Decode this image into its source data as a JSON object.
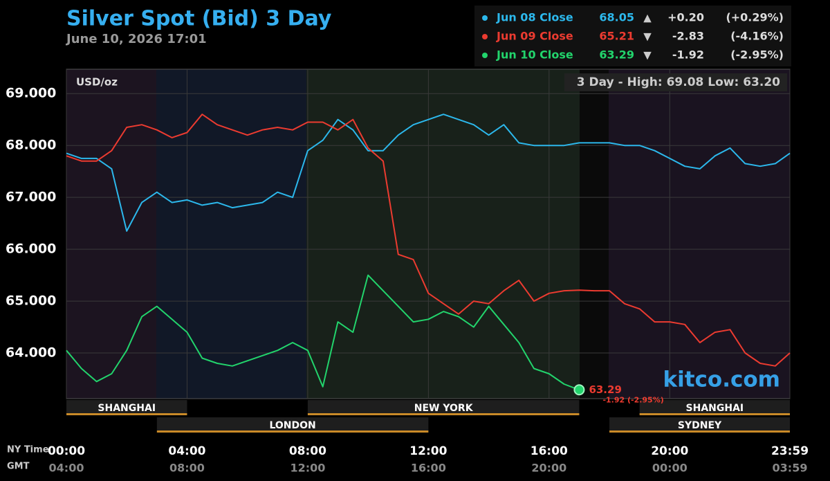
{
  "chart_data": {
    "type": "line",
    "title": "Silver Spot (Bid) 3 Day",
    "subtitle": "June 10, 2026 17:01",
    "y_label": "USD/oz",
    "high_low": "3 Day - High: 69.08  Low: 63.20",
    "brand": "kitco.com",
    "x_axis_name": "NY Time",
    "x2_axis_name": "GMT",
    "x": [
      0,
      0.5,
      1,
      1.5,
      2,
      2.5,
      3,
      3.5,
      4,
      4.5,
      5,
      5.5,
      6,
      6.5,
      7,
      7.5,
      8,
      8.5,
      9,
      9.5,
      10,
      10.5,
      11,
      11.5,
      12,
      12.5,
      13,
      13.5,
      14,
      14.5,
      15,
      15.5,
      16,
      16.5,
      17,
      17.5,
      18,
      18.5,
      19,
      19.5,
      20,
      20.5,
      21,
      21.5,
      22,
      22.5,
      23,
      23.5,
      23.983
    ],
    "xlim": [
      0,
      23.983
    ],
    "xticks": [
      {
        "value": 0,
        "label": "00:00"
      },
      {
        "value": 4,
        "label": "04:00"
      },
      {
        "value": 8,
        "label": "08:00"
      },
      {
        "value": 12,
        "label": "12:00"
      },
      {
        "value": 16,
        "label": "16:00"
      },
      {
        "value": 20,
        "label": "20:00"
      },
      {
        "value": 23.983,
        "label": "23:59"
      }
    ],
    "x2ticks": [
      "04:00",
      "08:00",
      "12:00",
      "16:00",
      "20:00",
      "00:00",
      "03:59"
    ],
    "ylim": [
      63.12,
      69.47
    ],
    "yticks": [
      {
        "value": 64,
        "label": "64.000"
      },
      {
        "value": 65,
        "label": "65.000"
      },
      {
        "value": 66,
        "label": "66.000"
      },
      {
        "value": 67,
        "label": "67.000"
      },
      {
        "value": 68,
        "label": "68.000"
      },
      {
        "value": 69,
        "label": "69.000"
      }
    ],
    "grid": true,
    "series": [
      {
        "name": "Jun 08 Close",
        "color": "#2cb8ec",
        "close": 68.05,
        "trend": "▲",
        "change": "+0.20",
        "change_pct": "(+0.29%)",
        "values": [
          67.85,
          67.75,
          67.75,
          67.55,
          66.35,
          66.9,
          67.1,
          66.9,
          66.95,
          66.85,
          66.9,
          66.8,
          66.85,
          66.9,
          67.1,
          67.0,
          67.9,
          68.1,
          68.5,
          68.3,
          67.9,
          67.9,
          68.2,
          68.4,
          68.5,
          68.6,
          68.5,
          68.4,
          68.2,
          68.4,
          68.05,
          68.0,
          68.0,
          68.0,
          68.05,
          68.05,
          68.05,
          68.0,
          68.0,
          67.9,
          67.75,
          67.6,
          67.55,
          67.8,
          67.95,
          67.65,
          67.6,
          67.65,
          67.85
        ]
      },
      {
        "name": "Jun 09 Close",
        "color": "#ec3b30",
        "close": 65.21,
        "trend": "▼",
        "change": "-2.83",
        "change_pct": "(-4.16%)",
        "values": [
          67.8,
          67.7,
          67.7,
          67.9,
          68.35,
          68.4,
          68.3,
          68.15,
          68.25,
          68.6,
          68.4,
          68.3,
          68.2,
          68.3,
          68.35,
          68.3,
          68.45,
          68.45,
          68.3,
          68.5,
          67.95,
          67.7,
          65.9,
          65.8,
          65.15,
          64.95,
          64.75,
          65.0,
          64.95,
          65.2,
          65.4,
          65.0,
          65.15,
          65.2,
          65.21,
          65.2,
          65.2,
          64.95,
          64.85,
          64.6,
          64.6,
          64.55,
          64.2,
          64.4,
          64.45,
          64.0,
          63.8,
          63.75,
          64.0
        ]
      },
      {
        "name": "Jun 10 Close",
        "color": "#22d46c",
        "close": 63.29,
        "trend": "▼",
        "change": "-1.92",
        "change_pct": "(-2.95%)",
        "last_change": "-1.92 (-2.95%)",
        "values": [
          64.05,
          63.7,
          63.45,
          63.6,
          64.05,
          64.7,
          64.9,
          64.65,
          64.4,
          63.9,
          63.8,
          63.75,
          63.85,
          63.95,
          64.05,
          64.2,
          64.05,
          63.35,
          64.6,
          64.4,
          65.5,
          65.2,
          64.9,
          64.6,
          64.65,
          64.8,
          64.7,
          64.5,
          64.9,
          64.55,
          64.2,
          63.7,
          63.6,
          63.4,
          63.29,
          null,
          null,
          null,
          null,
          null,
          null,
          null,
          null,
          null,
          null,
          null,
          null,
          null,
          null
        ]
      }
    ],
    "sessions": [
      {
        "name": "SHANGHAI",
        "start": 0,
        "end": 4,
        "row": 1
      },
      {
        "name": "NEW YORK",
        "start": 8,
        "end": 17,
        "row": 1
      },
      {
        "name": "SHANGHAI",
        "start": 19,
        "end": 23.983,
        "row": 1
      },
      {
        "name": "LONDON",
        "start": 3,
        "end": 12,
        "row": 2
      },
      {
        "name": "SYDNEY",
        "start": 18,
        "end": 23.983,
        "row": 2
      }
    ]
  }
}
